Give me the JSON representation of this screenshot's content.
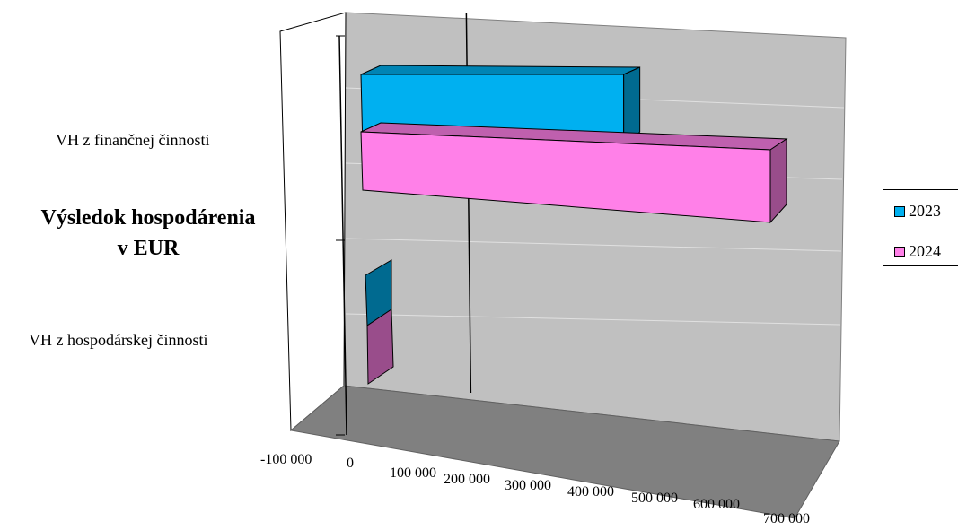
{
  "chart_data": {
    "type": "bar",
    "orientation": "horizontal",
    "style": "3d",
    "title": "Výsledok hospodárenia v EUR",
    "title_lines": [
      "Výsledok hospodárenia",
      "v EUR"
    ],
    "categories": [
      "VH z finančnej činnosti",
      "VH z hospodárskej činnosti"
    ],
    "series": [
      {
        "name": "2023",
        "values": [
          430000,
          -3000
        ],
        "color": "#00B0F0"
      },
      {
        "name": "2024",
        "values": [
          670000,
          -2000
        ],
        "color": "#FF80E8"
      }
    ],
    "xlim": [
      -100000,
      700000
    ],
    "x_ticks": [
      "-100 000",
      "0",
      "100 000",
      "200 000",
      "300 000",
      "400 000",
      "500 000",
      "600 000",
      "700 000"
    ],
    "grid": true,
    "legend_position": "right",
    "colors": {
      "wall": "#C0C0C0",
      "floor": "#808080"
    }
  }
}
